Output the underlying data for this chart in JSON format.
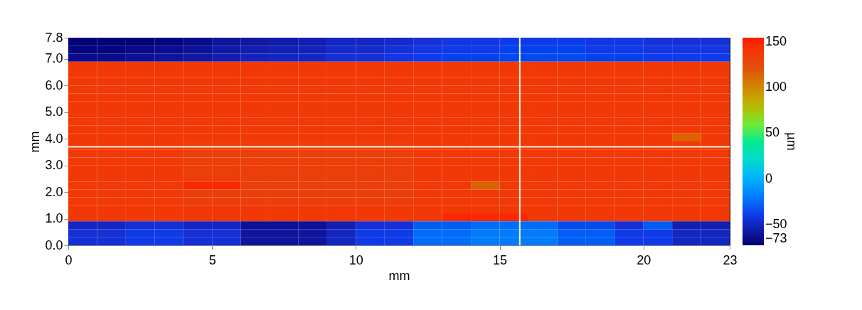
{
  "chart_data": {
    "type": "heatmap",
    "xlabel": "mm",
    "ylabel": "mm",
    "clabel": "µm",
    "xlim": [
      0,
      23
    ],
    "xticks": [
      0,
      5,
      10,
      15,
      20,
      23
    ],
    "ylim": [
      0,
      7.8
    ],
    "yticks": [
      {
        "value": 0,
        "label": "0.0"
      },
      {
        "value": 1,
        "label": "1.0"
      },
      {
        "value": 2,
        "label": "2.0"
      },
      {
        "value": 3,
        "label": "3.0"
      },
      {
        "value": 4,
        "label": "4.0"
      },
      {
        "value": 5,
        "label": "5.0"
      },
      {
        "value": 6,
        "label": "6.0"
      },
      {
        "value": 7,
        "label": "7.0"
      },
      {
        "value": 7.8,
        "label": "7.8"
      }
    ],
    "clim": [
      -73,
      155
    ],
    "cticks": [
      -73,
      -50,
      0,
      50,
      100,
      150
    ],
    "x": [
      0.5,
      1.5,
      2.5,
      3.5,
      4.5,
      5.5,
      6.5,
      7.5,
      8.5,
      9.5,
      10.5,
      11.5,
      12.5,
      13.5,
      14.5,
      15.5,
      16.5,
      17.5,
      18.5,
      19.5,
      20.5,
      21.5,
      22.5
    ],
    "cells": [
      [
        -70,
        -70,
        -70,
        -68,
        -65,
        -60,
        -58,
        -56,
        -55,
        -50,
        -50,
        -48,
        -45,
        -42,
        -42,
        -40,
        -40,
        -40,
        -42,
        -42,
        -45,
        -45,
        -45
      ],
      [
        -68,
        -68,
        -66,
        -64,
        -62,
        -58,
        -55,
        -54,
        -52,
        -48,
        -48,
        -45,
        -42,
        -40,
        -40,
        -38,
        -38,
        -38,
        -40,
        -40,
        -42,
        -42,
        -42
      ],
      [
        -65,
        -65,
        -62,
        -60,
        -58,
        -55,
        -52,
        -50,
        -50,
        -45,
        -45,
        -42,
        -40,
        -38,
        -38,
        -36,
        -36,
        -36,
        -38,
        -38,
        -40,
        -40,
        -40
      ],
      [
        140,
        140,
        140,
        140,
        140,
        140,
        140,
        140,
        140,
        140,
        140,
        140,
        140,
        140,
        140,
        140,
        140,
        140,
        140,
        140,
        140,
        140,
        140
      ],
      [
        140,
        140,
        140,
        140,
        140,
        140,
        140,
        140,
        140,
        140,
        140,
        140,
        140,
        140,
        140,
        140,
        140,
        140,
        140,
        140,
        140,
        140,
        140
      ],
      [
        140,
        140,
        140,
        140,
        140,
        140,
        140,
        140,
        140,
        140,
        140,
        140,
        140,
        140,
        140,
        140,
        140,
        140,
        140,
        140,
        140,
        140,
        140
      ],
      [
        140,
        140,
        140,
        140,
        140,
        140,
        140,
        140,
        140,
        140,
        140,
        140,
        140,
        140,
        140,
        140,
        140,
        140,
        140,
        140,
        140,
        140,
        140
      ],
      [
        140,
        140,
        140,
        140,
        140,
        140,
        140,
        138,
        138,
        138,
        138,
        140,
        140,
        140,
        140,
        140,
        140,
        140,
        140,
        140,
        140,
        140,
        140
      ],
      [
        140,
        140,
        140,
        140,
        140,
        140,
        140,
        138,
        138,
        138,
        138,
        140,
        140,
        140,
        140,
        140,
        140,
        140,
        140,
        140,
        140,
        140,
        140
      ],
      [
        140,
        140,
        140,
        140,
        140,
        140,
        140,
        138,
        138,
        138,
        138,
        140,
        140,
        140,
        140,
        140,
        140,
        140,
        140,
        140,
        140,
        140,
        140
      ],
      [
        140,
        140,
        140,
        140,
        140,
        140,
        140,
        140,
        140,
        140,
        140,
        140,
        140,
        140,
        140,
        140,
        140,
        140,
        140,
        140,
        140,
        140,
        140
      ],
      [
        140,
        140,
        140,
        140,
        140,
        140,
        140,
        140,
        140,
        140,
        140,
        140,
        140,
        140,
        140,
        140,
        140,
        140,
        140,
        140,
        140,
        140,
        140
      ],
      [
        140,
        140,
        140,
        140,
        140,
        140,
        140,
        140,
        140,
        140,
        140,
        140,
        140,
        140,
        140,
        140,
        140,
        140,
        140,
        140,
        140,
        115,
        140
      ],
      [
        140,
        140,
        140,
        140,
        135,
        135,
        135,
        135,
        135,
        135,
        135,
        135,
        140,
        140,
        140,
        140,
        140,
        140,
        140,
        140,
        140,
        140,
        140
      ],
      [
        140,
        140,
        140,
        140,
        135,
        135,
        135,
        135,
        135,
        135,
        135,
        135,
        140,
        140,
        140,
        140,
        140,
        140,
        140,
        140,
        140,
        140,
        140
      ],
      [
        140,
        140,
        140,
        140,
        135,
        135,
        135,
        135,
        135,
        135,
        135,
        135,
        140,
        140,
        140,
        140,
        140,
        140,
        140,
        140,
        140,
        140,
        140
      ],
      [
        140,
        140,
        140,
        140,
        135,
        135,
        135,
        135,
        135,
        135,
        135,
        135,
        140,
        140,
        140,
        140,
        140,
        140,
        140,
        140,
        140,
        140,
        140
      ],
      [
        140,
        140,
        140,
        140,
        135,
        135,
        135,
        135,
        135,
        135,
        135,
        135,
        140,
        140,
        140,
        140,
        140,
        140,
        140,
        140,
        140,
        140,
        140
      ],
      [
        140,
        140,
        140,
        140,
        150,
        150,
        135,
        135,
        135,
        135,
        135,
        135,
        140,
        140,
        115,
        140,
        140,
        140,
        140,
        140,
        140,
        140,
        140
      ],
      [
        140,
        140,
        140,
        140,
        135,
        135,
        135,
        135,
        135,
        135,
        135,
        135,
        140,
        140,
        140,
        140,
        140,
        140,
        140,
        140,
        140,
        140,
        140
      ],
      [
        140,
        140,
        140,
        140,
        135,
        135,
        135,
        135,
        135,
        135,
        135,
        135,
        140,
        140,
        140,
        140,
        140,
        140,
        140,
        140,
        140,
        140,
        140
      ],
      [
        140,
        140,
        140,
        140,
        140,
        140,
        140,
        140,
        140,
        140,
        140,
        140,
        140,
        140,
        140,
        140,
        140,
        140,
        140,
        140,
        140,
        140,
        140
      ],
      [
        140,
        140,
        140,
        140,
        140,
        140,
        140,
        140,
        140,
        140,
        140,
        140,
        140,
        150,
        150,
        150,
        140,
        140,
        140,
        140,
        140,
        140,
        140
      ],
      [
        -50,
        -50,
        -45,
        -45,
        -50,
        -50,
        -62,
        -62,
        -62,
        -55,
        -45,
        -45,
        -30,
        -30,
        -25,
        -25,
        -25,
        -35,
        -35,
        -45,
        -30,
        -55,
        -55
      ],
      [
        -45,
        -45,
        -40,
        -40,
        -45,
        -45,
        -60,
        -60,
        -60,
        -50,
        -40,
        -40,
        -25,
        -25,
        -20,
        -20,
        -20,
        -30,
        -30,
        -40,
        -40,
        -50,
        -50
      ],
      [
        -45,
        -45,
        -40,
        -40,
        -45,
        -45,
        -60,
        -60,
        -60,
        -50,
        -40,
        -40,
        -25,
        -25,
        -20,
        -20,
        -20,
        -30,
        -30,
        -40,
        -40,
        -50,
        -50
      ]
    ],
    "ref_lines": [
      {
        "axis": "x",
        "value": 15.7,
        "color": "#f4f0e0"
      },
      {
        "axis": "y",
        "value": 3.7,
        "color": "#f4f0e0"
      }
    ]
  }
}
